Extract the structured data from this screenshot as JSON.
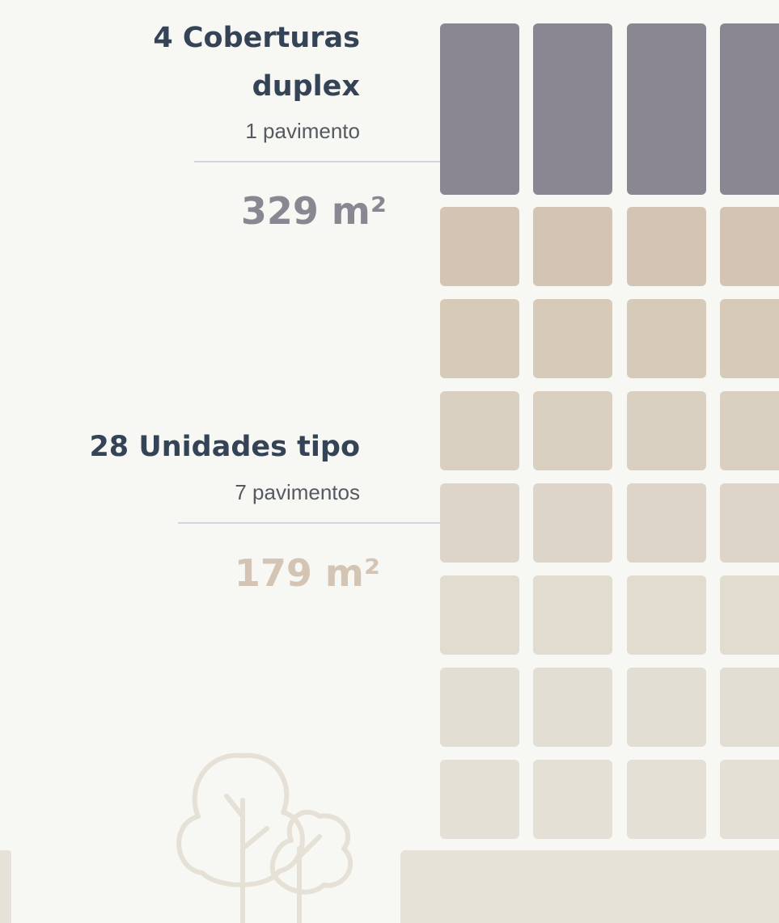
{
  "groups": [
    {
      "title_lines": [
        "4 Coberturas",
        "duplex"
      ],
      "floors": "1 pavimento",
      "area": "329 m²"
    },
    {
      "title_lines": [
        "28 Unidades tipo"
      ],
      "floors": "7 pavimentos",
      "area": "179 m²"
    }
  ]
}
